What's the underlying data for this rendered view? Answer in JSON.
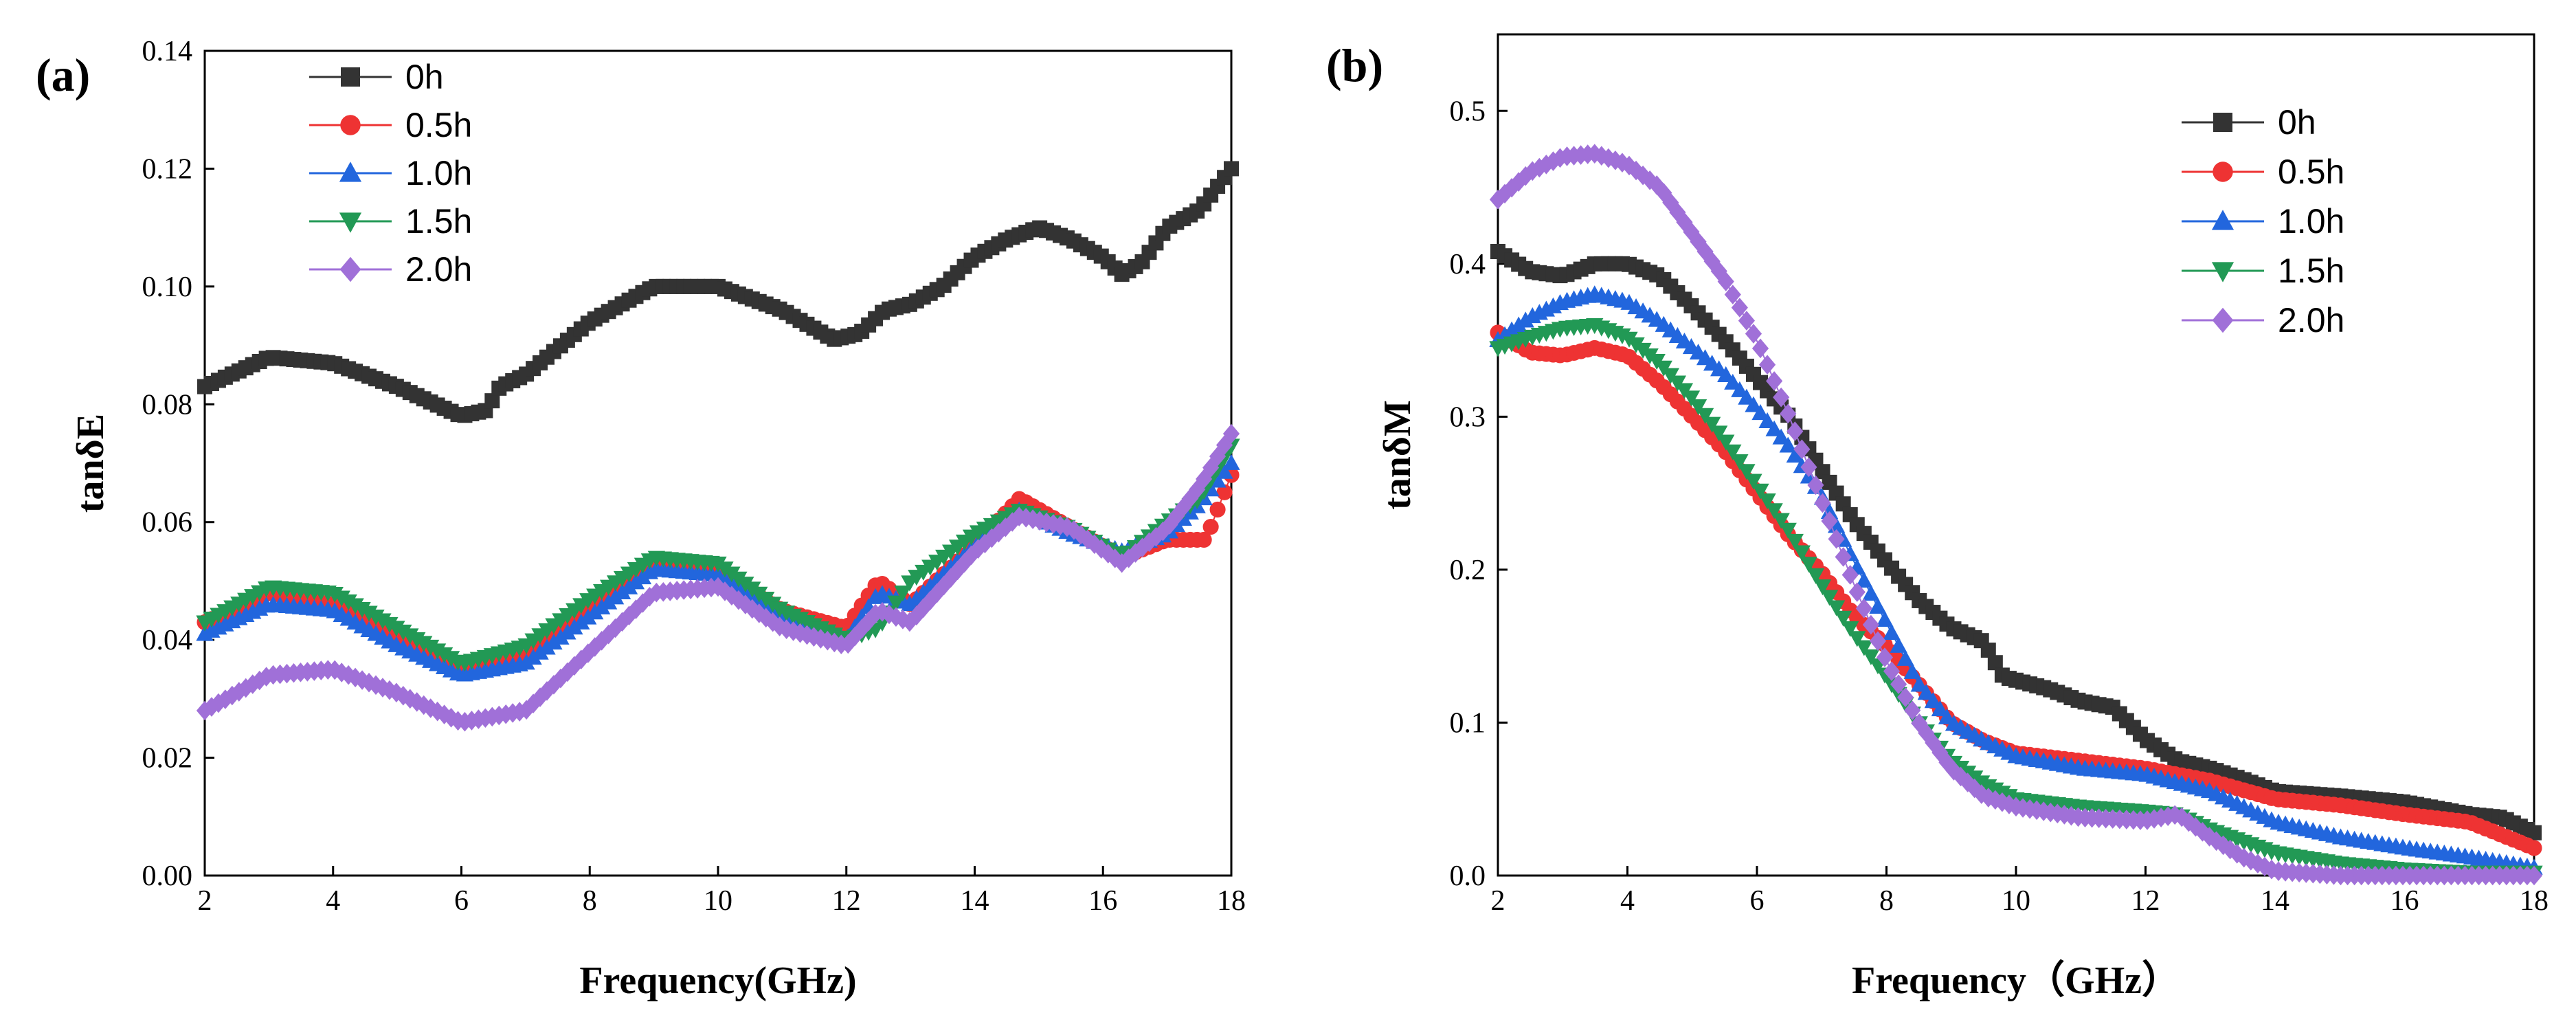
{
  "chart_data": [
    {
      "type": "line",
      "panel_label": "(a)",
      "xlabel": "Frequency(GHz)",
      "ylabel": "tanδE",
      "xlim": [
        2,
        18
      ],
      "ylim": [
        0,
        0.14
      ],
      "xticks": [
        "2",
        "4",
        "6",
        "8",
        "10",
        "12",
        "14",
        "16",
        "18"
      ],
      "yticks": [
        "0.00",
        "0.02",
        "0.04",
        "0.06",
        "0.08",
        "0.10",
        "0.12",
        "0.14"
      ],
      "legend_position": "top-left",
      "series": [
        {
          "name": "0h",
          "color": "#333333",
          "marker": "square",
          "points": [
            [
              2,
              0.083
            ],
            [
              3,
              0.088
            ],
            [
              4,
              0.087
            ],
            [
              5,
              0.083
            ],
            [
              6,
              0.078
            ],
            [
              6.4,
              0.079
            ],
            [
              6.6,
              0.083
            ],
            [
              7,
              0.085
            ],
            [
              8,
              0.094
            ],
            [
              9,
              0.1
            ],
            [
              10,
              0.1
            ],
            [
              11,
              0.096
            ],
            [
              11.8,
              0.091
            ],
            [
              12.2,
              0.092
            ],
            [
              12.6,
              0.096
            ],
            [
              13,
              0.097
            ],
            [
              13.5,
              0.1
            ],
            [
              14,
              0.105
            ],
            [
              14.5,
              0.108
            ],
            [
              15,
              0.11
            ],
            [
              15.5,
              0.108
            ],
            [
              16,
              0.105
            ],
            [
              16.3,
              0.102
            ],
            [
              16.6,
              0.104
            ],
            [
              17,
              0.11
            ],
            [
              17.5,
              0.113
            ],
            [
              18,
              0.12
            ]
          ]
        },
        {
          "name": "0.5h",
          "color": "#ee3333",
          "marker": "circle",
          "points": [
            [
              2,
              0.043
            ],
            [
              3,
              0.048
            ],
            [
              4,
              0.046
            ],
            [
              5,
              0.04
            ],
            [
              6,
              0.035
            ],
            [
              7,
              0.037
            ],
            [
              8,
              0.045
            ],
            [
              9,
              0.053
            ],
            [
              10,
              0.052
            ],
            [
              11,
              0.045
            ],
            [
              12,
              0.042
            ],
            [
              12.5,
              0.05
            ],
            [
              13,
              0.046
            ],
            [
              14,
              0.056
            ],
            [
              14.7,
              0.064
            ],
            [
              15.5,
              0.059
            ],
            [
              16.3,
              0.054
            ],
            [
              17,
              0.057
            ],
            [
              17.6,
              0.057
            ],
            [
              18,
              0.068
            ]
          ]
        },
        {
          "name": "1.0h",
          "color": "#2266dd",
          "marker": "triangle-up",
          "points": [
            [
              2,
              0.041
            ],
            [
              3,
              0.046
            ],
            [
              4,
              0.045
            ],
            [
              5,
              0.039
            ],
            [
              6,
              0.034
            ],
            [
              7,
              0.036
            ],
            [
              8,
              0.044
            ],
            [
              9,
              0.052
            ],
            [
              10,
              0.051
            ],
            [
              11,
              0.044
            ],
            [
              12,
              0.04
            ],
            [
              12.5,
              0.048
            ],
            [
              13,
              0.046
            ],
            [
              14,
              0.056
            ],
            [
              14.7,
              0.062
            ],
            [
              15.5,
              0.058
            ],
            [
              16.3,
              0.055
            ],
            [
              17,
              0.058
            ],
            [
              17.5,
              0.063
            ],
            [
              18,
              0.07
            ]
          ]
        },
        {
          "name": "1.5h",
          "color": "#229955",
          "marker": "triangle-down",
          "points": [
            [
              2,
              0.043
            ],
            [
              3,
              0.049
            ],
            [
              4,
              0.048
            ],
            [
              5,
              0.042
            ],
            [
              6,
              0.036
            ],
            [
              7,
              0.039
            ],
            [
              8,
              0.047
            ],
            [
              9,
              0.054
            ],
            [
              10,
              0.053
            ],
            [
              11,
              0.045
            ],
            [
              12,
              0.04
            ],
            [
              12.5,
              0.042
            ],
            [
              13,
              0.05
            ],
            [
              14,
              0.058
            ],
            [
              14.7,
              0.062
            ],
            [
              15.5,
              0.059
            ],
            [
              16.3,
              0.054
            ],
            [
              17,
              0.06
            ],
            [
              17.5,
              0.064
            ],
            [
              18,
              0.073
            ]
          ]
        },
        {
          "name": "2.0h",
          "color": "#a070d8",
          "marker": "diamond",
          "points": [
            [
              2,
              0.028
            ],
            [
              3,
              0.034
            ],
            [
              4,
              0.035
            ],
            [
              5,
              0.031
            ],
            [
              6,
              0.026
            ],
            [
              7,
              0.028
            ],
            [
              8,
              0.038
            ],
            [
              9,
              0.048
            ],
            [
              10,
              0.049
            ],
            [
              11,
              0.042
            ],
            [
              12,
              0.039
            ],
            [
              12.5,
              0.045
            ],
            [
              13,
              0.043
            ],
            [
              14,
              0.055
            ],
            [
              14.7,
              0.061
            ],
            [
              15.5,
              0.059
            ],
            [
              16.3,
              0.053
            ],
            [
              17,
              0.059
            ],
            [
              17.5,
              0.066
            ],
            [
              18,
              0.075
            ]
          ]
        }
      ]
    },
    {
      "type": "line",
      "panel_label": "(b)",
      "xlabel": "Frequency（GHz）",
      "ylabel": "tanδM",
      "xlim": [
        2,
        18
      ],
      "ylim": [
        0,
        0.55
      ],
      "xticks": [
        "2",
        "4",
        "6",
        "8",
        "10",
        "12",
        "14",
        "16",
        "18"
      ],
      "yticks": [
        "0.0",
        "0.1",
        "0.2",
        "0.3",
        "0.4",
        "0.5"
      ],
      "legend_position": "top-right",
      "series": [
        {
          "name": "0h",
          "color": "#333333",
          "marker": "square",
          "points": [
            [
              2,
              0.408
            ],
            [
              2.5,
              0.395
            ],
            [
              3,
              0.392
            ],
            [
              3.5,
              0.4
            ],
            [
              4,
              0.4
            ],
            [
              4.5,
              0.392
            ],
            [
              5,
              0.372
            ],
            [
              5.5,
              0.35
            ],
            [
              6,
              0.325
            ],
            [
              6.5,
              0.3
            ],
            [
              7,
              0.265
            ],
            [
              7.5,
              0.232
            ],
            [
              8,
              0.205
            ],
            [
              8.5,
              0.18
            ],
            [
              9,
              0.162
            ],
            [
              9.5,
              0.153
            ],
            [
              9.8,
              0.13
            ],
            [
              10.5,
              0.122
            ],
            [
              11,
              0.114
            ],
            [
              11.5,
              0.11
            ],
            [
              12,
              0.089
            ],
            [
              12.5,
              0.075
            ],
            [
              13,
              0.07
            ],
            [
              13.5,
              0.063
            ],
            [
              14,
              0.055
            ],
            [
              15,
              0.052
            ],
            [
              16,
              0.048
            ],
            [
              17,
              0.04
            ],
            [
              17.5,
              0.038
            ],
            [
              18,
              0.028
            ]
          ]
        },
        {
          "name": "0.5h",
          "color": "#ee3333",
          "marker": "circle",
          "points": [
            [
              2,
              0.355
            ],
            [
              2.5,
              0.342
            ],
            [
              3,
              0.34
            ],
            [
              3.5,
              0.345
            ],
            [
              4,
              0.34
            ],
            [
              4.5,
              0.322
            ],
            [
              5,
              0.3
            ],
            [
              5.5,
              0.278
            ],
            [
              6,
              0.25
            ],
            [
              6.5,
              0.222
            ],
            [
              7,
              0.198
            ],
            [
              7.5,
              0.17
            ],
            [
              8,
              0.15
            ],
            [
              8.5,
              0.125
            ],
            [
              9,
              0.1
            ],
            [
              9.5,
              0.088
            ],
            [
              10,
              0.08
            ],
            [
              11,
              0.075
            ],
            [
              12,
              0.07
            ],
            [
              13,
              0.062
            ],
            [
              14,
              0.05
            ],
            [
              15,
              0.046
            ],
            [
              16,
              0.04
            ],
            [
              17,
              0.035
            ],
            [
              18,
              0.018
            ]
          ]
        },
        {
          "name": "1.0h",
          "color": "#2266dd",
          "marker": "triangle-up",
          "points": [
            [
              2,
              0.35
            ],
            [
              2.5,
              0.365
            ],
            [
              3,
              0.375
            ],
            [
              3.5,
              0.38
            ],
            [
              4,
              0.375
            ],
            [
              4.5,
              0.362
            ],
            [
              5,
              0.345
            ],
            [
              5.5,
              0.328
            ],
            [
              6,
              0.305
            ],
            [
              6.5,
              0.28
            ],
            [
              7,
              0.248
            ],
            [
              7.5,
              0.205
            ],
            [
              8,
              0.165
            ],
            [
              8.5,
              0.125
            ],
            [
              9,
              0.1
            ],
            [
              9.5,
              0.088
            ],
            [
              10,
              0.078
            ],
            [
              11,
              0.07
            ],
            [
              12,
              0.066
            ],
            [
              13,
              0.055
            ],
            [
              14,
              0.035
            ],
            [
              15,
              0.025
            ],
            [
              16,
              0.018
            ],
            [
              17,
              0.012
            ],
            [
              18,
              0.005
            ]
          ]
        },
        {
          "name": "1.5h",
          "color": "#229955",
          "marker": "triangle-down",
          "points": [
            [
              2,
              0.345
            ],
            [
              2.5,
              0.352
            ],
            [
              3,
              0.358
            ],
            [
              3.5,
              0.36
            ],
            [
              4,
              0.352
            ],
            [
              4.5,
              0.335
            ],
            [
              5,
              0.312
            ],
            [
              5.5,
              0.285
            ],
            [
              6,
              0.255
            ],
            [
              6.5,
              0.225
            ],
            [
              7,
              0.19
            ],
            [
              7.5,
              0.158
            ],
            [
              8,
              0.13
            ],
            [
              8.5,
              0.1
            ],
            [
              9,
              0.075
            ],
            [
              9.5,
              0.06
            ],
            [
              10,
              0.05
            ],
            [
              11,
              0.045
            ],
            [
              12,
              0.042
            ],
            [
              12.5,
              0.04
            ],
            [
              13,
              0.03
            ],
            [
              14,
              0.015
            ],
            [
              15,
              0.008
            ],
            [
              16,
              0.004
            ],
            [
              17,
              0.002
            ],
            [
              18,
              0.002
            ]
          ]
        },
        {
          "name": "2.0h",
          "color": "#a070d8",
          "marker": "diamond",
          "points": [
            [
              2,
              0.442
            ],
            [
              2.5,
              0.46
            ],
            [
              3,
              0.47
            ],
            [
              3.5,
              0.472
            ],
            [
              4,
              0.465
            ],
            [
              4.5,
              0.45
            ],
            [
              5,
              0.42
            ],
            [
              5.5,
              0.39
            ],
            [
              6,
              0.35
            ],
            [
              6.5,
              0.3
            ],
            [
              7,
              0.245
            ],
            [
              7.5,
              0.19
            ],
            [
              8,
              0.14
            ],
            [
              8.5,
              0.1
            ],
            [
              9,
              0.07
            ],
            [
              9.5,
              0.052
            ],
            [
              10,
              0.045
            ],
            [
              11,
              0.038
            ],
            [
              12,
              0.036
            ],
            [
              12.5,
              0.04
            ],
            [
              13,
              0.025
            ],
            [
              13.5,
              0.012
            ],
            [
              14,
              0.003
            ],
            [
              15,
              0
            ],
            [
              16,
              0
            ],
            [
              18,
              0
            ]
          ]
        }
      ]
    }
  ]
}
